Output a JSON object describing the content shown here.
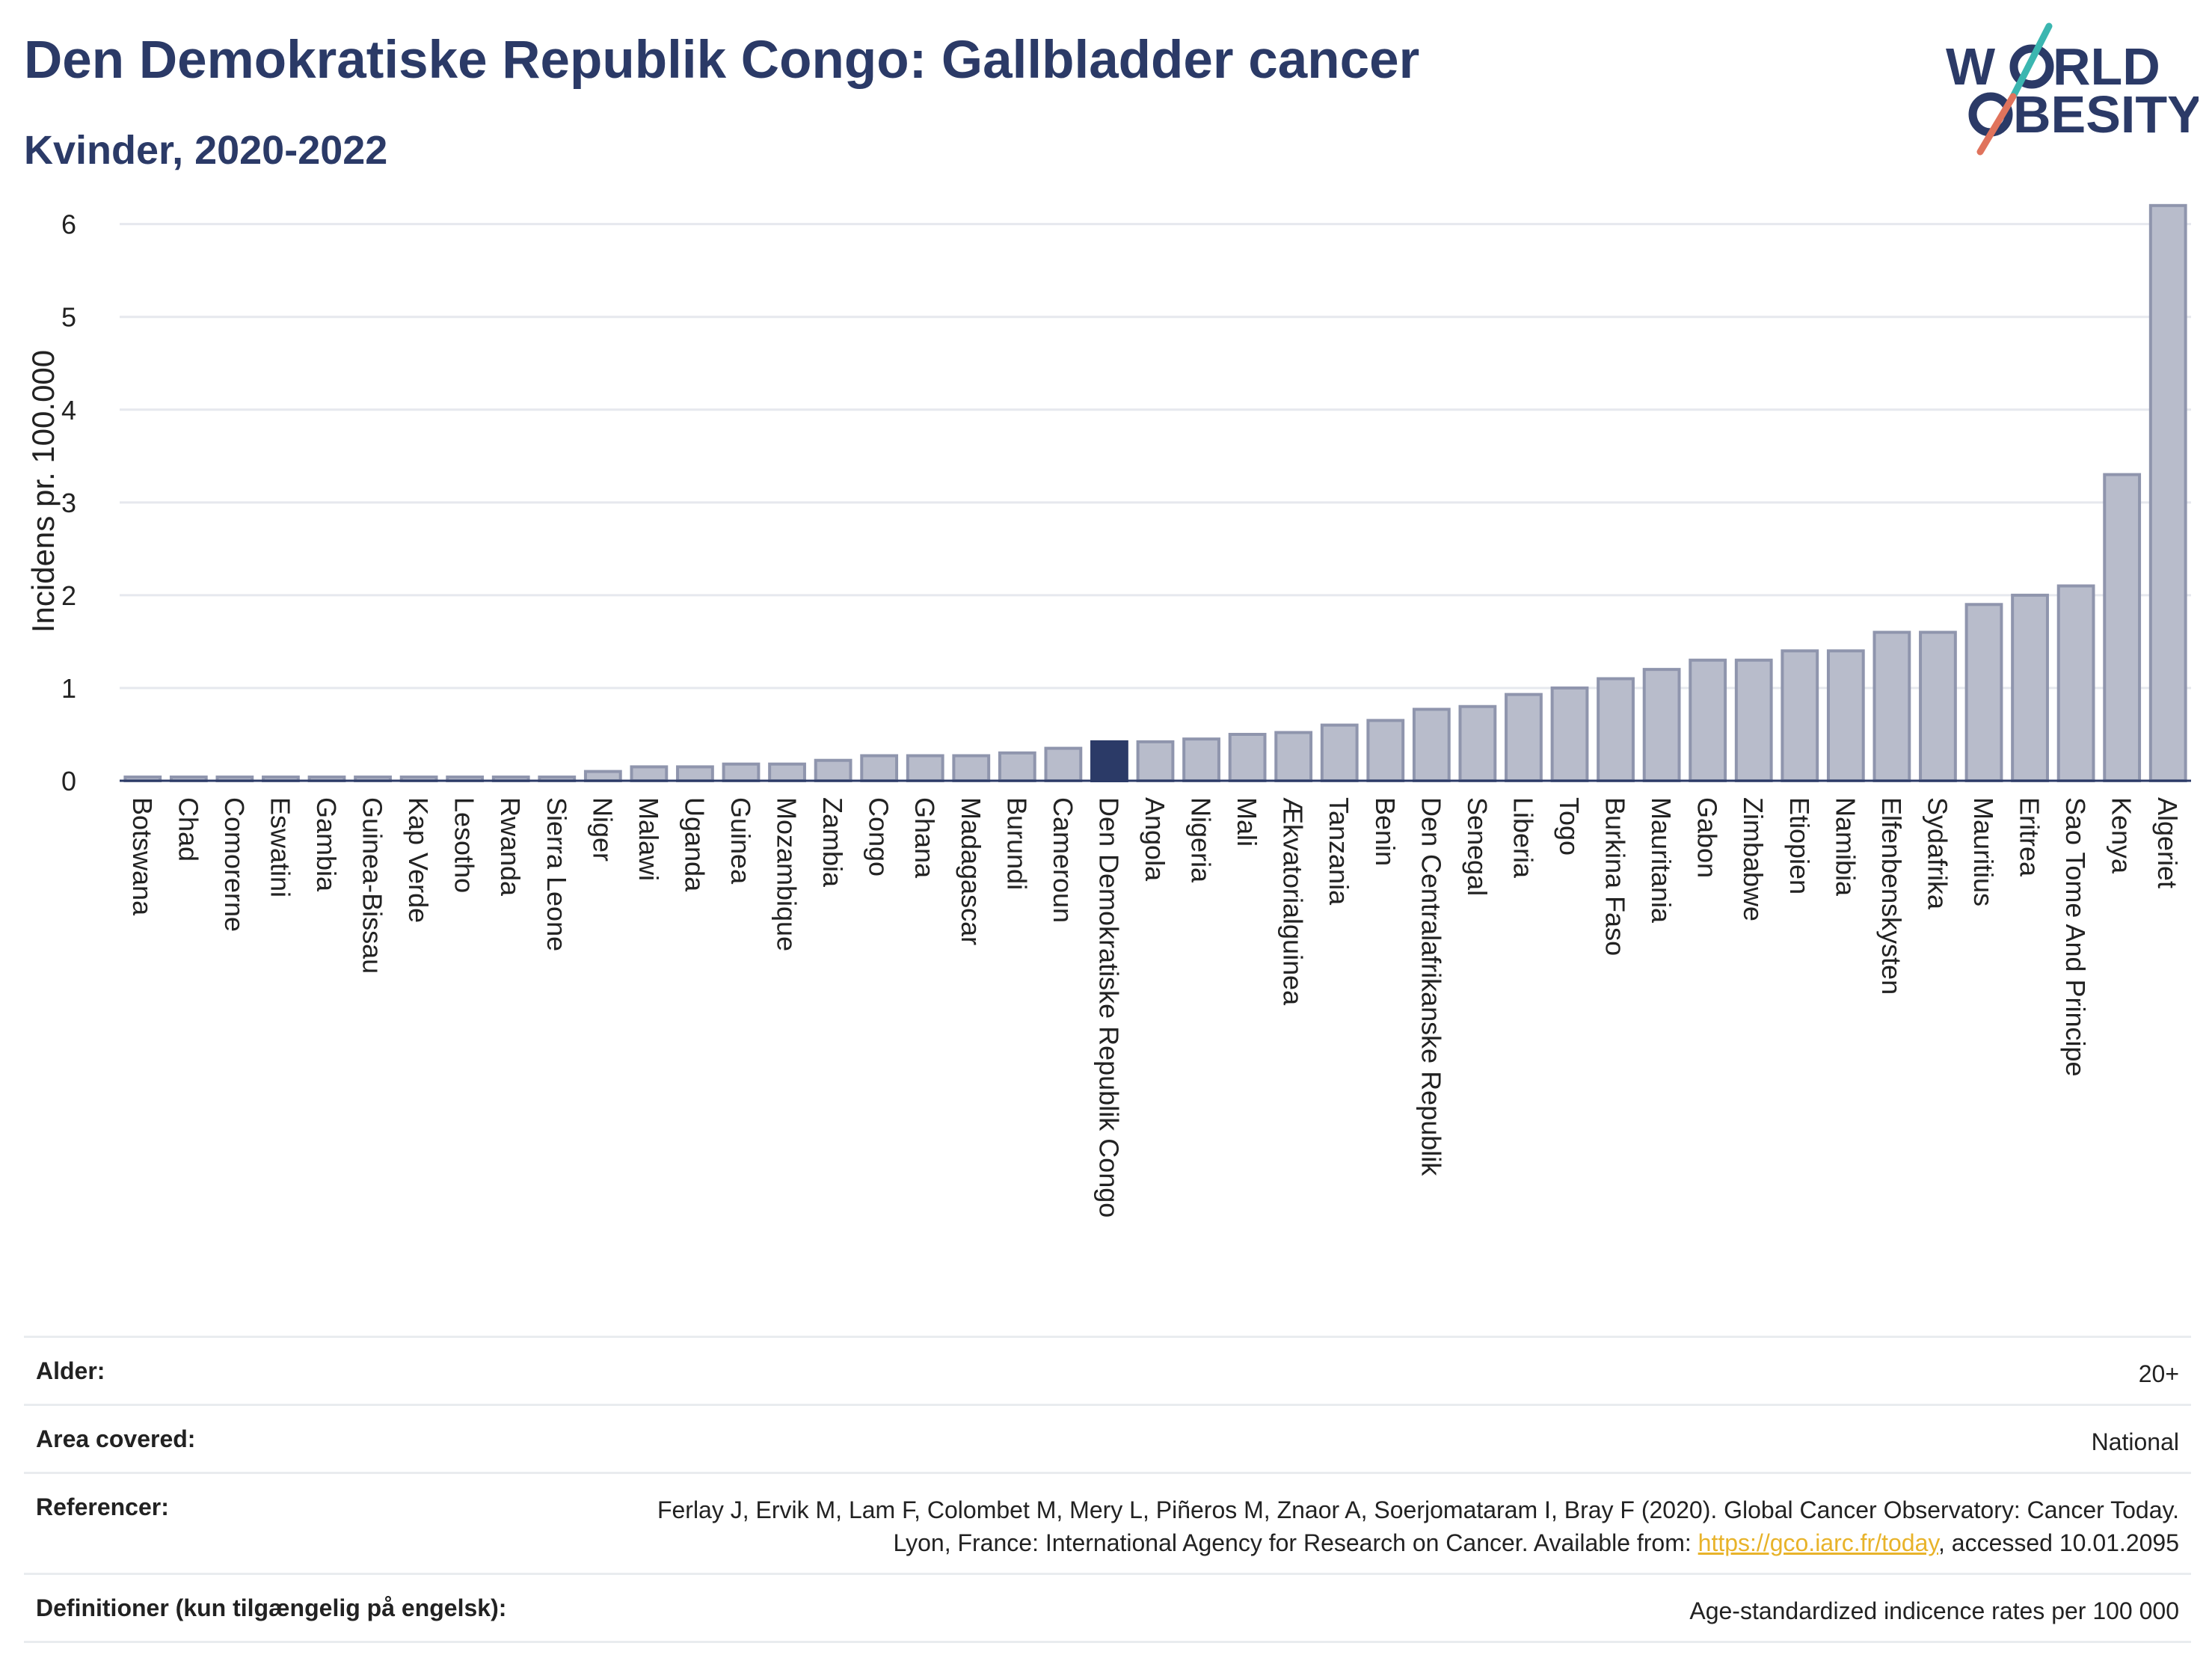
{
  "title": "Den Demokratiske Republik Congo: Gallbladder cancer",
  "subtitle": "Kvinder, 2020-2022",
  "logo": {
    "line1": "W RLD",
    "line2": "BESITY",
    "text": "WORLD OBESITY"
  },
  "colors": {
    "bar": "#b8bccb",
    "bar_edge": "#8f95ad",
    "highlight": "#2b3a67",
    "text": "#2b3a67",
    "link": "#e8b32a"
  },
  "chart_data": {
    "type": "bar",
    "ylabel": "Incidens pr. 100.000",
    "xlabel": "",
    "ylim": [
      0,
      6.4
    ],
    "yticks": [
      0,
      1,
      2,
      3,
      4,
      5,
      6
    ],
    "grid": true,
    "highlight": "Den Demokratiske Republik Congo",
    "categories": [
      "Botswana",
      "Chad",
      "Comorerne",
      "Eswatini",
      "Gambia",
      "Guinea-Bissau",
      "Kap Verde",
      "Lesotho",
      "Rwanda",
      "Sierra Leone",
      "Niger",
      "Malawi",
      "Uganda",
      "Guinea",
      "Mozambique",
      "Zambia",
      "Congo",
      "Ghana",
      "Madagascar",
      "Burundi",
      "Cameroun",
      "Den Demokratiske Republik Congo",
      "Angola",
      "Nigeria",
      "Mali",
      "Ækvatorialguinea",
      "Tanzania",
      "Benin",
      "Den Centralafrikanske Republik",
      "Senegal",
      "Liberia",
      "Togo",
      "Burkina Faso",
      "Mauritania",
      "Gabon",
      "Zimbabwe",
      "Etiopien",
      "Namibia",
      "Elfenbenskysten",
      "Sydafrika",
      "Mauritius",
      "Eritrea",
      "Sao Tome And Principe",
      "Kenya",
      "Algeriet"
    ],
    "values": [
      0.04,
      0.04,
      0.04,
      0.04,
      0.04,
      0.04,
      0.04,
      0.04,
      0.04,
      0.04,
      0.1,
      0.15,
      0.15,
      0.18,
      0.18,
      0.22,
      0.27,
      0.27,
      0.27,
      0.3,
      0.35,
      0.42,
      0.42,
      0.45,
      0.5,
      0.52,
      0.6,
      0.65,
      0.77,
      0.8,
      0.93,
      1.0,
      1.1,
      1.2,
      1.3,
      1.3,
      1.4,
      1.4,
      1.6,
      1.6,
      1.9,
      2.0,
      2.1,
      3.3,
      6.2
    ]
  },
  "meta": {
    "age_label": "Alder:",
    "age_value": "20+",
    "area_label": "Area covered:",
    "area_value": "National",
    "ref_label": "Referencer:",
    "ref_text1": "Ferlay J, Ervik M, Lam F, Colombet M, Mery L, Piñeros M, Znaor A, Soerjomataram I, Bray F (2020). Global Cancer Observatory: Cancer Today. Lyon, France: International Agency for Research on Cancer. Available from: ",
    "ref_link": "https://gco.iarc.fr/today",
    "ref_text2": ", accessed 10.01.2095",
    "def_label": "Definitioner (kun tilgængelig på engelsk):",
    "def_value": "Age-standardized indicence rates per 100 000"
  }
}
